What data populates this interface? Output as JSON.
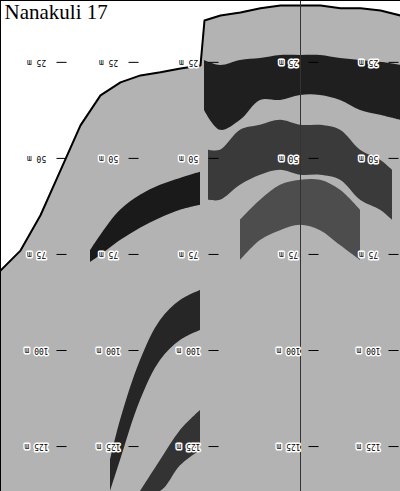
{
  "chart_data": {
    "type": "echogram",
    "title": "Nanakuli 17",
    "xlim": [
      0,
      100
    ],
    "ylim": [
      8.9,
      136.7
    ],
    "yticks": [
      {
        "value": 25,
        "label": "25 m"
      },
      {
        "value": 50,
        "label": "50 m"
      },
      {
        "value": 75,
        "label": "75 m"
      },
      {
        "value": 100,
        "label": "100 m"
      },
      {
        "value": 125,
        "label": "125 m"
      }
    ],
    "tick_labels": false,
    "series": [
      {
        "color": "#b3b3b3",
        "x": [
          0,
          5,
          10,
          15,
          20,
          25,
          30,
          35,
          40,
          45,
          50,
          51,
          55,
          60,
          65,
          70,
          75,
          80,
          85,
          90,
          95,
          100
        ],
        "values": [
          79.2,
          74.0,
          64.8,
          53.1,
          41.4,
          33.6,
          30.2,
          28.4,
          27.6,
          26.6,
          25.8,
          14.1,
          12.8,
          12.0,
          10.9,
          10.2,
          10.2,
          10.2,
          10.9,
          10.9,
          11.5,
          12.8
        ],
        "lower": [
          136.7,
          136.7,
          136.7,
          136.7,
          136.7,
          136.7,
          136.7,
          136.7,
          136.7,
          136.7,
          136.7,
          136.7,
          136.7,
          136.7,
          136.7,
          136.7,
          136.7,
          136.7,
          136.7,
          136.7,
          136.7,
          136.7
        ]
      },
      {
        "color": "#1a1a1a",
        "x": [
          22.5,
          25,
          30,
          35,
          40,
          45,
          50
        ],
        "values": [
          74.0,
          70.1,
          63.5,
          59.6,
          57.0,
          55.2,
          53.6
        ],
        "lower": [
          77.1,
          75.3,
          71.4,
          68.2,
          65.6,
          63.5,
          62.2
        ]
      },
      {
        "color": "#262626",
        "x": [
          27.5,
          30,
          35,
          40,
          45,
          50
        ],
        "values": [
          128.6,
          118.2,
          102.6,
          92.2,
          87.0,
          84.4
        ],
        "lower": [
          136.7,
          128.6,
          113.0,
          102.6,
          97.4,
          94.8
        ]
      },
      {
        "color": "#333333",
        "x": [
          35,
          40,
          45,
          50
        ],
        "values": [
          136.7,
          128.6,
          120.8,
          115.6
        ],
        "lower": [
          136.7,
          136.7,
          130.0,
          126.0
        ]
      },
      {
        "color": "#1f1f1f",
        "x": [
          51,
          55,
          60,
          65,
          70,
          75,
          80,
          85,
          90,
          95,
          100
        ],
        "values": [
          24.5,
          25.8,
          24.5,
          24.0,
          23.2,
          23.2,
          23.2,
          24.0,
          24.5,
          25.0,
          25.8
        ],
        "lower": [
          37.5,
          42.7,
          40.1,
          34.9,
          34.9,
          33.6,
          33.6,
          34.9,
          37.5,
          38.8,
          40.1
        ]
      },
      {
        "color": "#3a3a3a",
        "x": [
          52,
          55,
          60,
          65,
          70,
          75,
          80,
          85,
          90,
          95,
          98
        ],
        "values": [
          47.9,
          47.9,
          42.7,
          41.4,
          40.1,
          41.4,
          41.4,
          42.7,
          47.9,
          50.5,
          53.1
        ],
        "lower": [
          60.9,
          60.9,
          57.0,
          54.4,
          53.1,
          54.4,
          54.4,
          55.7,
          60.9,
          63.5,
          66.1
        ]
      },
      {
        "color": "#4d4d4d",
        "x": [
          60,
          65,
          70,
          75,
          80,
          85,
          90
        ],
        "values": [
          66.1,
          60.9,
          57.0,
          55.7,
          55.7,
          58.3,
          63.5
        ],
        "lower": [
          76.6,
          71.4,
          68.8,
          67.4,
          68.8,
          72.7,
          76.6
        ]
      }
    ]
  }
}
